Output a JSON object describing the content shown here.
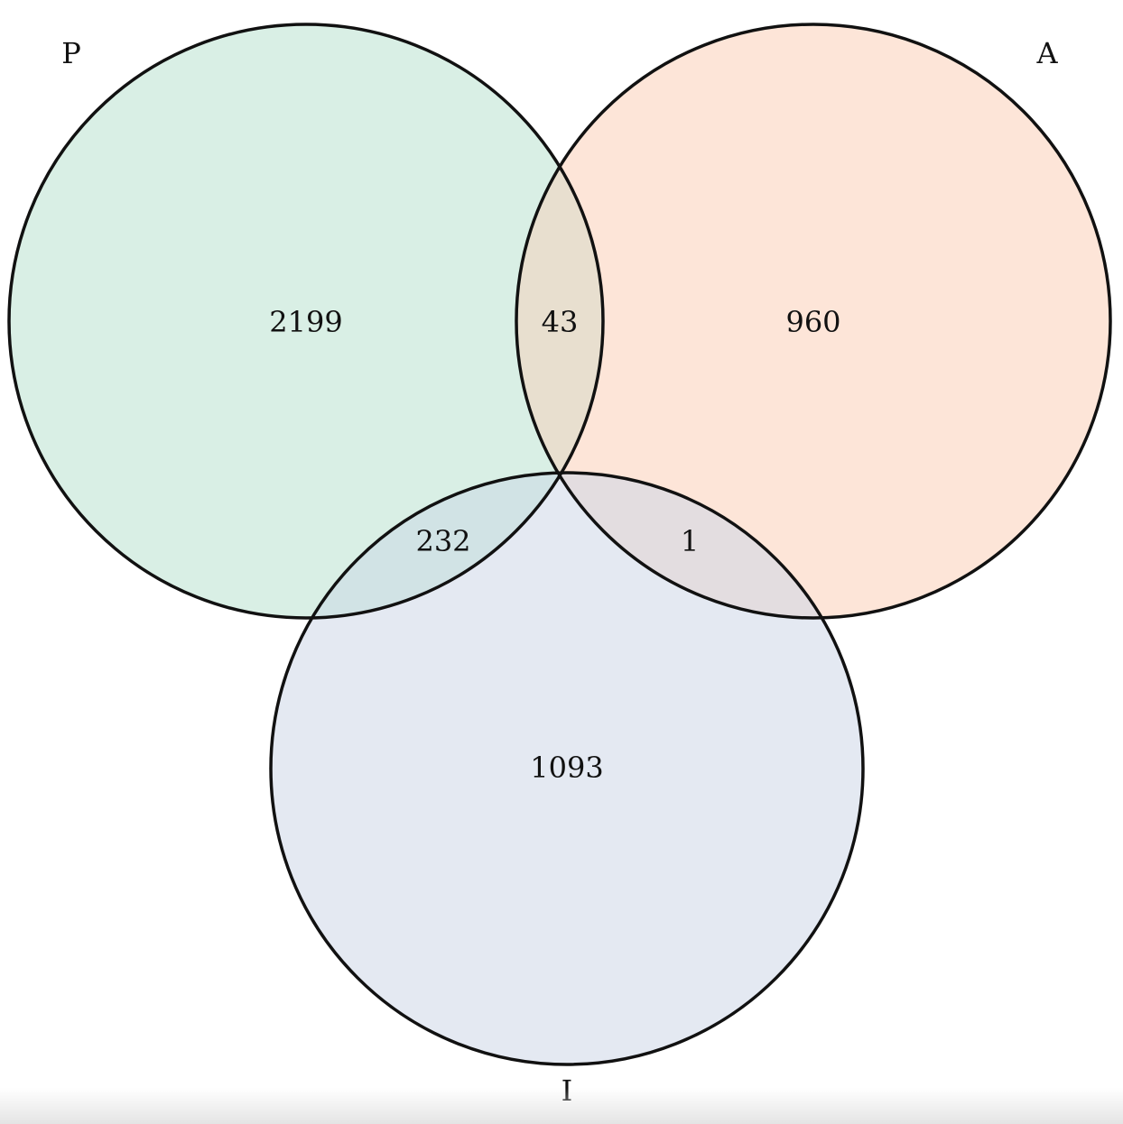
{
  "sets": [
    {
      "key": "P",
      "label": "P",
      "color": "#d9efe5"
    },
    {
      "key": "A",
      "label": "A",
      "color": "#fde5d8"
    },
    {
      "key": "I",
      "label": "I",
      "color": "#e4e9f2"
    }
  ],
  "regions": {
    "P_only": "2199",
    "A_only": "960",
    "I_only": "1093",
    "P_A": "43",
    "P_I": "232",
    "A_I": "1"
  },
  "overlap_colors": {
    "P_A": "#e8dfcf",
    "P_I": "#d1e3e5",
    "A_I": "#e3dde0"
  },
  "outline_color": "#111111"
}
